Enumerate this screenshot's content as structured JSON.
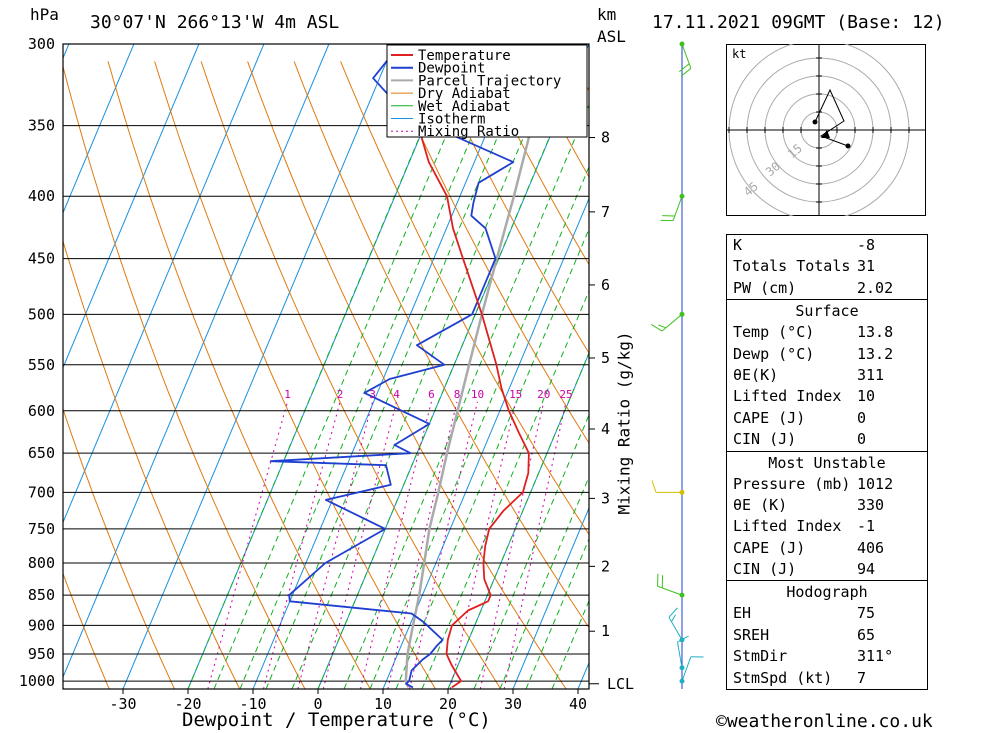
{
  "header": {
    "hpa_label": "hPa",
    "location": "30°07'N  266°13'W  4m  ASL",
    "km_label": "km",
    "asl_label": "ASL",
    "datetime": "17.11.2021  09GMT  (Base: 12)"
  },
  "chart_data": {
    "type": "line",
    "xlabel": "Dewpoint / Temperature (°C)",
    "ylabel_right": "Mixing Ratio (g/kg)",
    "x_ticks": [
      -30,
      -20,
      -10,
      0,
      10,
      20,
      30,
      40
    ],
    "pressure_levels": [
      300,
      350,
      400,
      450,
      500,
      550,
      600,
      650,
      700,
      750,
      800,
      850,
      900,
      950,
      1000
    ],
    "km_ticks": [
      {
        "km": "1",
        "p": 910
      },
      {
        "km": "2",
        "p": 805
      },
      {
        "km": "3",
        "p": 708
      },
      {
        "km": "4",
        "p": 621
      },
      {
        "km": "5",
        "p": 543
      },
      {
        "km": "6",
        "p": 473
      },
      {
        "km": "7",
        "p": 412
      },
      {
        "km": "8",
        "p": 358
      }
    ],
    "lcl_label": "LCL",
    "lcl_pressure": 1005,
    "mixing_ratio_labels": [
      "1",
      "2",
      "3",
      "4",
      "6",
      "8",
      "10",
      "15",
      "20",
      "25"
    ],
    "mixing_ratio_label_pressure": 590,
    "legend": [
      "Temperature",
      "Dewpoint",
      "Parcel Trajectory",
      "Dry Adiabat",
      "Wet Adiabat",
      "Isotherm",
      "Mixing Ratio"
    ],
    "colors": {
      "temperature": "#e02020",
      "dewpoint": "#1f3fd0",
      "parcel": "#aaaaaa",
      "dry_adiabat": "#e07a10",
      "wet_adiabat": "#10b020",
      "isotherm": "#1a90e0",
      "mixing_ratio": "#cc00aa"
    },
    "temperature": [
      {
        "p": 1012,
        "t": 20.5
      },
      {
        "p": 1000,
        "t": 21.5
      },
      {
        "p": 970,
        "t": 19.0
      },
      {
        "p": 950,
        "t": 17.5
      },
      {
        "p": 925,
        "t": 16.8
      },
      {
        "p": 900,
        "t": 16.5
      },
      {
        "p": 875,
        "t": 18.0
      },
      {
        "p": 860,
        "t": 20.5
      },
      {
        "p": 850,
        "t": 20.5
      },
      {
        "p": 825,
        "t": 18.5
      },
      {
        "p": 800,
        "t": 17.3
      },
      {
        "p": 775,
        "t": 16.5
      },
      {
        "p": 750,
        "t": 16.0
      },
      {
        "p": 725,
        "t": 17.0
      },
      {
        "p": 700,
        "t": 18.8
      },
      {
        "p": 675,
        "t": 18.4
      },
      {
        "p": 650,
        "t": 17.2
      },
      {
        "p": 625,
        "t": 14.3
      },
      {
        "p": 600,
        "t": 11.4
      },
      {
        "p": 575,
        "t": 8.8
      },
      {
        "p": 550,
        "t": 6.5
      },
      {
        "p": 500,
        "t": 1.0
      },
      {
        "p": 450,
        "t": -5.5
      },
      {
        "p": 425,
        "t": -9.0
      },
      {
        "p": 400,
        "t": -12.0
      },
      {
        "p": 375,
        "t": -17.0
      },
      {
        "p": 350,
        "t": -21.0
      },
      {
        "p": 300,
        "t": -30.5
      }
    ],
    "dewpoint": [
      {
        "p": 1012,
        "t": 14.5
      },
      {
        "p": 1005,
        "t": 13.2
      },
      {
        "p": 1000,
        "t": 13.5
      },
      {
        "p": 980,
        "t": 13.2
      },
      {
        "p": 960,
        "t": 14.2
      },
      {
        "p": 950,
        "t": 15.0
      },
      {
        "p": 935,
        "t": 15.5
      },
      {
        "p": 925,
        "t": 16.0
      },
      {
        "p": 910,
        "t": 14.0
      },
      {
        "p": 895,
        "t": 12.0
      },
      {
        "p": 880,
        "t": 9.5
      },
      {
        "p": 860,
        "t": -10.0
      },
      {
        "p": 850,
        "t": -10.5
      },
      {
        "p": 800,
        "t": -7.0
      },
      {
        "p": 750,
        "t": 0.0
      },
      {
        "p": 710,
        "t": -11.0
      },
      {
        "p": 690,
        "t": -2.0
      },
      {
        "p": 665,
        "t": -4.0
      },
      {
        "p": 660,
        "t": -22.0
      },
      {
        "p": 650,
        "t": -1.0
      },
      {
        "p": 640,
        "t": -4.0
      },
      {
        "p": 615,
        "t": 0.0
      },
      {
        "p": 580,
        "t": -12.0
      },
      {
        "p": 565,
        "t": -9.0
      },
      {
        "p": 550,
        "t": -1.5
      },
      {
        "p": 530,
        "t": -7.0
      },
      {
        "p": 500,
        "t": -0.5
      },
      {
        "p": 475,
        "t": -0.5
      },
      {
        "p": 450,
        "t": -0.5
      },
      {
        "p": 425,
        "t": -4.0
      },
      {
        "p": 415,
        "t": -7.0
      },
      {
        "p": 405,
        "t": -7.5
      },
      {
        "p": 390,
        "t": -8.0
      },
      {
        "p": 375,
        "t": -4.0
      },
      {
        "p": 350,
        "t": -19.0
      },
      {
        "p": 335,
        "t": -26.0
      },
      {
        "p": 320,
        "t": -31.0
      },
      {
        "p": 300,
        "t": -29.0
      }
    ],
    "parcel": [
      {
        "p": 1012,
        "t": 13.8
      },
      {
        "p": 1000,
        "t": 13.0
      },
      {
        "p": 950,
        "t": 11.5
      },
      {
        "p": 900,
        "t": 10.5
      },
      {
        "p": 850,
        "t": 9.5
      },
      {
        "p": 800,
        "t": 8.2
      },
      {
        "p": 750,
        "t": 6.8
      },
      {
        "p": 700,
        "t": 5.8
      },
      {
        "p": 650,
        "t": 4.6
      },
      {
        "p": 600,
        "t": 3.5
      },
      {
        "p": 550,
        "t": 2.3
      },
      {
        "p": 500,
        "t": 1.0
      },
      {
        "p": 450,
        "t": -0.3
      },
      {
        "p": 400,
        "t": -1.7
      },
      {
        "p": 350,
        "t": -3.5
      },
      {
        "p": 300,
        "t": -6.0
      }
    ],
    "winds": [
      {
        "p": 300,
        "dir": 160,
        "kt": 20
      },
      {
        "p": 400,
        "dir": 200,
        "kt": 20
      },
      {
        "p": 500,
        "dir": 230,
        "kt": 15
      },
      {
        "p": 700,
        "dir": 270,
        "kt": 10
      },
      {
        "p": 850,
        "dir": 290,
        "kt": 20
      },
      {
        "p": 925,
        "dir": 330,
        "kt": 15
      },
      {
        "p": 975,
        "dir": 350,
        "kt": 10
      },
      {
        "p": 1000,
        "dir": 20,
        "kt": 10
      }
    ]
  },
  "hodograph": {
    "unit_label": "kt",
    "ring_labels": [
      "15",
      "30",
      "45"
    ]
  },
  "indices": {
    "rows": [
      {
        "label": "K",
        "value": "-8"
      },
      {
        "label": "Totals Totals",
        "value": "31"
      },
      {
        "label": "PW (cm)",
        "value": "2.02"
      }
    ]
  },
  "surface": {
    "title": "Surface",
    "rows": [
      {
        "label": "Temp (°C)",
        "value": "13.8"
      },
      {
        "label": "Dewp (°C)",
        "value": "13.2"
      },
      {
        "label": "θE(K)",
        "value": "311"
      },
      {
        "label": "Lifted Index",
        "value": "10"
      },
      {
        "label": "CAPE (J)",
        "value": "0"
      },
      {
        "label": "CIN (J)",
        "value": "0"
      }
    ]
  },
  "most_unstable": {
    "title": "Most Unstable",
    "rows": [
      {
        "label": "Pressure (mb)",
        "value": "1012"
      },
      {
        "label": "θE (K)",
        "value": "330"
      },
      {
        "label": "Lifted Index",
        "value": "-1"
      },
      {
        "label": "CAPE (J)",
        "value": "406"
      },
      {
        "label": "CIN (J)",
        "value": "94"
      }
    ]
  },
  "hodograph_stats": {
    "title": "Hodograph",
    "rows": [
      {
        "label": "EH",
        "value": "75"
      },
      {
        "label": "SREH",
        "value": "65"
      },
      {
        "label": "StmDir",
        "value": "311°"
      },
      {
        "label": "StmSpd (kt)",
        "value": "7"
      }
    ]
  },
  "credit": "weatheronline.co.uk",
  "credit_symbol": "©"
}
